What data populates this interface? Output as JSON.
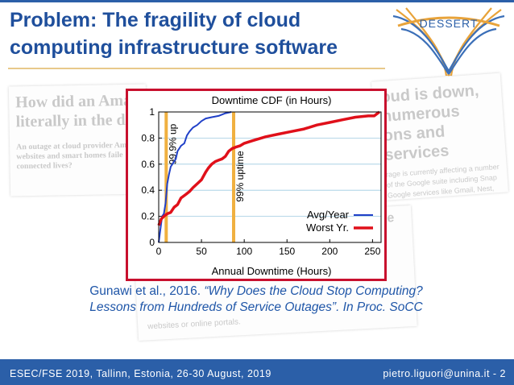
{
  "slide": {
    "title": "Problem: The fragility of cloud computing infrastructure software",
    "logo_text": "DESSERT",
    "citation_author": "Gunawi et al., 2016. ",
    "citation_title": "“Why Does the Cloud Stop Computing? Lessons from Hundreds of Service Outages”. In Proc. SoCC",
    "footer_left": "ESEC/FSE 2019, Tallinn, Estonia, 26-30 August, 2019",
    "footer_right": "pietro.liguori@unina.it  - 2"
  },
  "background_news": {
    "left_headline_1": "How did an Ama",
    "left_headline_2": "literally in the da",
    "left_body_1": "An outage at cloud provider Am",
    "left_body_2": "websites and smart homes faile",
    "left_body_3": "connected lives?",
    "right_headline_1": "oud is down,",
    "right_headline_2": "numerous",
    "right_headline_3": "ons and services",
    "right_body_1": "rage is currently affecting a number",
    "right_body_2": "of the Google suite including Snap",
    "right_body_3": "Google services like Gmail, Nest,",
    "bottom_tail": "ge",
    "bottom_body": "websites or online portals."
  },
  "colors": {
    "title": "#1f4f9c",
    "footer_bg": "#2b5fa8",
    "frame": "#c8102e",
    "avg_series": "#2040c8",
    "worst_series": "#e0101a",
    "markers": "#f0b040"
  },
  "chart_data": {
    "type": "line",
    "title": "Downtime CDF (in Hours)",
    "xlabel": "Annual Downtime (Hours)",
    "ylabel": "",
    "xlim": [
      0,
      260
    ],
    "ylim": [
      0,
      1
    ],
    "x_ticks": [
      "0",
      "50",
      "100",
      "150",
      "200",
      "250"
    ],
    "y_ticks": [
      "0",
      "0.2",
      "0.4",
      "0.6",
      "0.8",
      "1"
    ],
    "grid": "horizontal",
    "legend_position": "bottom-right",
    "series": [
      {
        "name": "Avg/Year",
        "color": "#2040c8",
        "points": [
          [
            0,
            0
          ],
          [
            2,
            0.1
          ],
          [
            4,
            0.2
          ],
          [
            6,
            0.22
          ],
          [
            8,
            0.3
          ],
          [
            10,
            0.45
          ],
          [
            12,
            0.52
          ],
          [
            14,
            0.58
          ],
          [
            16,
            0.6
          ],
          [
            18,
            0.62
          ],
          [
            20,
            0.64
          ],
          [
            22,
            0.7
          ],
          [
            24,
            0.72
          ],
          [
            26,
            0.74
          ],
          [
            28,
            0.75
          ],
          [
            30,
            0.76
          ],
          [
            33,
            0.82
          ],
          [
            36,
            0.85
          ],
          [
            40,
            0.88
          ],
          [
            45,
            0.9
          ],
          [
            50,
            0.93
          ],
          [
            55,
            0.95
          ],
          [
            62,
            0.96
          ],
          [
            70,
            0.97
          ],
          [
            78,
            0.99
          ],
          [
            85,
            1.0
          ]
        ]
      },
      {
        "name": "Worst Yr.",
        "color": "#e0101a",
        "points": [
          [
            0,
            0.13
          ],
          [
            3,
            0.18
          ],
          [
            6,
            0.2
          ],
          [
            10,
            0.22
          ],
          [
            14,
            0.23
          ],
          [
            18,
            0.27
          ],
          [
            22,
            0.29
          ],
          [
            26,
            0.34
          ],
          [
            32,
            0.37
          ],
          [
            36,
            0.39
          ],
          [
            40,
            0.42
          ],
          [
            45,
            0.45
          ],
          [
            50,
            0.48
          ],
          [
            55,
            0.54
          ],
          [
            58,
            0.57
          ],
          [
            62,
            0.6
          ],
          [
            66,
            0.62
          ],
          [
            70,
            0.63
          ],
          [
            74,
            0.64
          ],
          [
            78,
            0.66
          ],
          [
            82,
            0.7
          ],
          [
            86,
            0.72
          ],
          [
            90,
            0.73
          ],
          [
            95,
            0.74
          ],
          [
            100,
            0.76
          ],
          [
            110,
            0.78
          ],
          [
            125,
            0.81
          ],
          [
            140,
            0.83
          ],
          [
            155,
            0.85
          ],
          [
            170,
            0.87
          ],
          [
            185,
            0.9
          ],
          [
            200,
            0.92
          ],
          [
            215,
            0.94
          ],
          [
            230,
            0.96
          ],
          [
            245,
            0.97
          ],
          [
            252,
            0.97
          ],
          [
            258,
            1.0
          ]
        ]
      }
    ],
    "annotations": [
      {
        "label": "99.9% up",
        "x": 8.76
      },
      {
        "label": "99% uptime",
        "x": 87.6
      }
    ]
  }
}
